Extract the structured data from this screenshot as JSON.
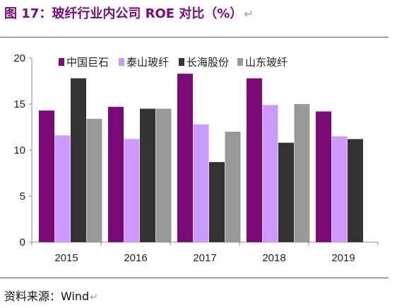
{
  "figure": {
    "title": "图 17：玻纤行业内公司 ROE 对比（%）",
    "source": "资料来源：Wind"
  },
  "chart_data": {
    "type": "bar",
    "title": "",
    "xlabel": "",
    "ylabel": "",
    "categories": [
      "2015",
      "2016",
      "2017",
      "2018",
      "2019"
    ],
    "series": [
      {
        "name": "中国巨石",
        "color": "#7b0a78",
        "values": [
          14.3,
          14.7,
          18.3,
          17.8,
          14.2
        ]
      },
      {
        "name": "泰山玻纤",
        "color": "#cc99ff",
        "values": [
          11.6,
          11.2,
          12.8,
          14.9,
          11.5
        ]
      },
      {
        "name": "长海股份",
        "color": "#333333",
        "values": [
          17.8,
          14.5,
          8.7,
          10.8,
          11.2
        ]
      },
      {
        "name": "山东玻纤",
        "color": "#999999",
        "values": [
          13.4,
          14.5,
          12.0,
          15.0,
          null
        ]
      }
    ],
    "ylim": [
      0,
      20
    ],
    "yticks": [
      "0",
      "5",
      "10",
      "15",
      "20"
    ],
    "grid": false,
    "legend": "top"
  }
}
